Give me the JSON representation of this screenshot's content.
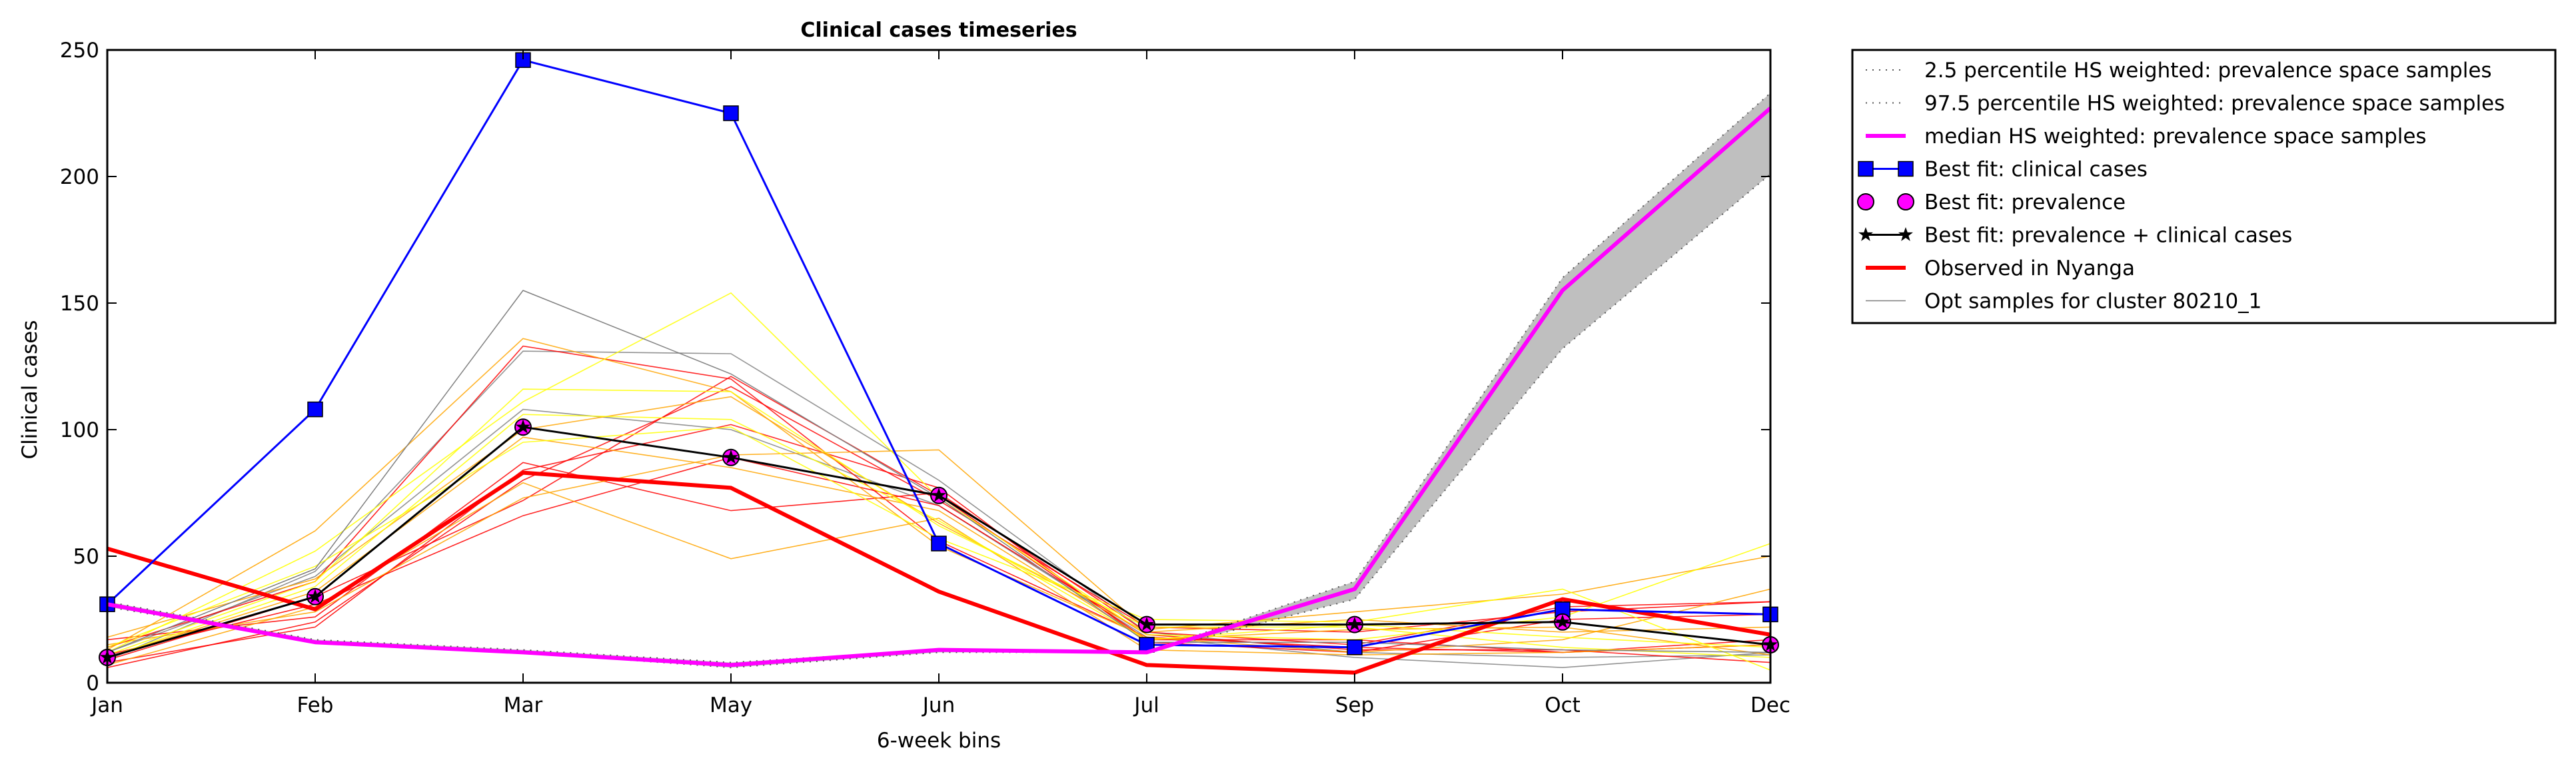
{
  "chart_data": {
    "type": "line",
    "title": "Clinical cases timeseries",
    "xlabel": "6-week bins",
    "ylabel": "Clinical cases",
    "categories": [
      "Jan",
      "Feb",
      "Mar",
      "May",
      "Jun",
      "Jul",
      "Sep",
      "Oct",
      "Dec"
    ],
    "ylim": [
      0,
      250
    ],
    "yticks": [
      0,
      50,
      100,
      150,
      200,
      250
    ],
    "grid": false,
    "legend_position": "outside-right-top",
    "band": {
      "lower": [
        30,
        16,
        12,
        6,
        12,
        12,
        33,
        132,
        201
      ],
      "upper": [
        32,
        17,
        13,
        8,
        13,
        12,
        40,
        160,
        233
      ],
      "color": "#bfbfbf"
    },
    "series": [
      {
        "name": "2.5 percentile HS weighted: prevalence space samples",
        "values": [
          30,
          16,
          12,
          6,
          12,
          12,
          33,
          132,
          201
        ],
        "color": "#555555",
        "style": "dotted",
        "width": 2,
        "marker": "none"
      },
      {
        "name": "97.5 percentile HS weighted: prevalence space samples",
        "values": [
          32,
          17,
          13,
          8,
          13,
          12,
          40,
          160,
          233
        ],
        "color": "#555555",
        "style": "dotted",
        "width": 2,
        "marker": "none"
      },
      {
        "name": "median HS weighted: prevalence space samples",
        "values": [
          31,
          16,
          12,
          7,
          13,
          12,
          37,
          155,
          227
        ],
        "color": "#ff00ff",
        "style": "solid",
        "width": 6,
        "marker": "none"
      },
      {
        "name": "Best fit: clinical cases",
        "values": [
          31,
          108,
          246,
          225,
          55,
          15,
          14,
          29,
          27
        ],
        "color": "#0000ff",
        "style": "solid",
        "width": 3,
        "marker": "square"
      },
      {
        "name": "Best fit: prevalence",
        "values": [
          10,
          34,
          101,
          89,
          74,
          23,
          23,
          24,
          15
        ],
        "color": "#000000",
        "style": "none",
        "width": 3,
        "marker": "circle",
        "markerFill": "#ff00ff"
      },
      {
        "name": "Best fit: prevalence + clinical cases",
        "values": [
          10,
          34,
          101,
          89,
          74,
          23,
          23,
          24,
          15
        ],
        "color": "#000000",
        "style": "solid",
        "width": 3,
        "marker": "star"
      },
      {
        "name": "Observed in Nyanga",
        "values": [
          53,
          29,
          83,
          77,
          36,
          7,
          4,
          33,
          19
        ],
        "color": "#ff0000",
        "style": "solid",
        "width": 6,
        "marker": "none"
      },
      {
        "name": "Opt samples for cluster 80210_1",
        "values": [
          12,
          45,
          155,
          122,
          73,
          16,
          16,
          13,
          12
        ],
        "color": "#808080",
        "style": "solid",
        "width": 1.5,
        "marker": "none"
      }
    ],
    "samples": [
      {
        "values": [
          9,
          44,
          131,
          130,
          80,
          20,
          12,
          10,
          11
        ],
        "color": "#808080"
      },
      {
        "values": [
          12,
          42,
          108,
          100,
          70,
          18,
          10,
          6,
          12
        ],
        "color": "#808080"
      },
      {
        "values": [
          14,
          40,
          133,
          120,
          56,
          18,
          14,
          12,
          15
        ],
        "color": "#ff0000"
      },
      {
        "values": [
          9,
          34,
          72,
          121,
          74,
          17,
          17,
          12,
          17
        ],
        "color": "#ff0000"
      },
      {
        "values": [
          17,
          26,
          87,
          68,
          75,
          20,
          15,
          30,
          32
        ],
        "color": "#ff0000"
      },
      {
        "values": [
          11,
          31,
          66,
          89,
          70,
          19,
          13,
          13,
          8
        ],
        "color": "#ff0000"
      },
      {
        "values": [
          6,
          24,
          80,
          117,
          72,
          22,
          20,
          28,
          32
        ],
        "color": "#ff0000"
      },
      {
        "values": [
          8,
          22,
          84,
          102,
          77,
          16,
          12,
          25,
          27
        ],
        "color": "#ff0000"
      },
      {
        "values": [
          13,
          60,
          136,
          115,
          54,
          18,
          12,
          17,
          37
        ],
        "color": "#ffa500"
      },
      {
        "values": [
          7,
          30,
          79,
          49,
          65,
          13,
          11,
          12,
          15
        ],
        "color": "#ffa500"
      },
      {
        "values": [
          15,
          28,
          73,
          90,
          92,
          21,
          28,
          35,
          50
        ],
        "color": "#ffa500"
      },
      {
        "values": [
          10,
          36,
          97,
          85,
          68,
          17,
          21,
          22,
          11
        ],
        "color": "#ffa500"
      },
      {
        "values": [
          18,
          41,
          100,
          113,
          63,
          20,
          25,
          20,
          22
        ],
        "color": "#ffa500"
      },
      {
        "values": [
          12,
          52,
          111,
          154,
          73,
          19,
          17,
          26,
          55
        ],
        "color": "#ffff00"
      },
      {
        "values": [
          11,
          40,
          116,
          115,
          62,
          22,
          22,
          14,
          10
        ],
        "color": "#ffff00"
      },
      {
        "values": [
          14,
          46,
          95,
          101,
          57,
          25,
          24,
          37,
          5
        ],
        "color": "#ffff00"
      },
      {
        "values": [
          10,
          38,
          106,
          104,
          64,
          17,
          23,
          18,
          14
        ],
        "color": "#ffff00"
      }
    ]
  }
}
